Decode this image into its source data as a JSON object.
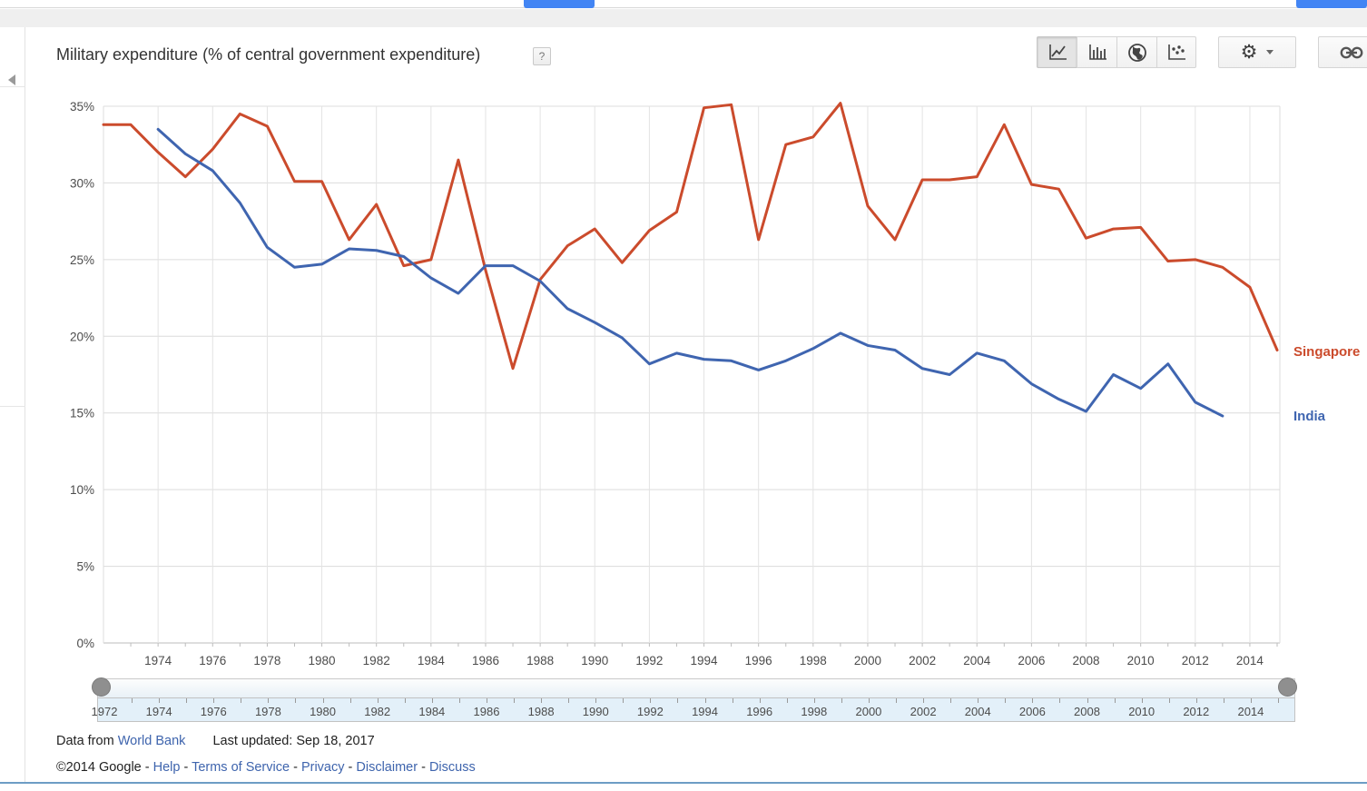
{
  "colors": {
    "accent_blue": "#4285f4",
    "singapore_line": "#cb4b2c",
    "india_line": "#3f65b0",
    "link_blue": "#3e64ad",
    "bottom_rule": "#6d9dc5"
  },
  "header": {
    "title": "Military expenditure (% of central government expenditure)",
    "help_label": "?"
  },
  "toolbar": {
    "chart_type_buttons": [
      {
        "id": "line-chart",
        "selected": true
      },
      {
        "id": "column-chart",
        "selected": false
      },
      {
        "id": "map-chart",
        "selected": false
      },
      {
        "id": "scatter-chart",
        "selected": false
      }
    ],
    "settings_button": "gear-with-dropdown",
    "share_button": "link"
  },
  "chart_data": {
    "type": "line",
    "title": "Military expenditure (% of central government expenditure)",
    "xlabel": "",
    "ylabel": "",
    "ylim": [
      0,
      35
    ],
    "y_ticks": [
      "0%",
      "5%",
      "10%",
      "15%",
      "20%",
      "25%",
      "30%",
      "35%"
    ],
    "x_ticks": [
      1974,
      1976,
      1978,
      1980,
      1982,
      1984,
      1986,
      1988,
      1990,
      1992,
      1994,
      1996,
      1998,
      2000,
      2002,
      2004,
      2006,
      2008,
      2010,
      2012,
      2014
    ],
    "xlim": [
      1972,
      2015
    ],
    "grid": true,
    "legend_position": "right",
    "series": [
      {
        "name": "Singapore",
        "color": "#cb4b2c",
        "x": [
          1972,
          1973,
          1974,
          1975,
          1976,
          1977,
          1978,
          1979,
          1980,
          1981,
          1982,
          1983,
          1984,
          1985,
          1986,
          1987,
          1988,
          1989,
          1990,
          1991,
          1992,
          1993,
          1994,
          1995,
          1996,
          1997,
          1998,
          1999,
          2000,
          2001,
          2002,
          2003,
          2004,
          2005,
          2006,
          2007,
          2008,
          2009,
          2010,
          2011,
          2012,
          2013,
          2014,
          2015
        ],
        "values": [
          33.8,
          33.8,
          32.0,
          30.4,
          32.2,
          34.5,
          33.7,
          30.1,
          30.1,
          26.3,
          28.6,
          24.6,
          25.0,
          31.5,
          24.3,
          17.9,
          23.7,
          25.9,
          27.0,
          24.8,
          26.9,
          28.1,
          34.9,
          35.1,
          26.3,
          32.5,
          33.0,
          35.2,
          28.5,
          26.3,
          30.2,
          30.2,
          30.4,
          33.8,
          29.9,
          29.6,
          26.4,
          27.0,
          27.1,
          24.9,
          25.0,
          24.5,
          23.2,
          19.1
        ]
      },
      {
        "name": "India",
        "color": "#3f65b0",
        "x": [
          1974,
          1975,
          1976,
          1977,
          1978,
          1979,
          1980,
          1981,
          1982,
          1983,
          1984,
          1985,
          1986,
          1987,
          1988,
          1989,
          1990,
          1991,
          1992,
          1993,
          1994,
          1995,
          1996,
          1997,
          1998,
          1999,
          2000,
          2001,
          2002,
          2003,
          2004,
          2005,
          2006,
          2007,
          2008,
          2009,
          2010,
          2011,
          2012,
          2013
        ],
        "values": [
          33.5,
          31.9,
          30.8,
          28.7,
          25.8,
          24.5,
          24.7,
          25.7,
          25.6,
          25.2,
          23.8,
          22.8,
          24.6,
          24.6,
          23.6,
          21.8,
          20.9,
          19.9,
          18.2,
          18.9,
          18.5,
          18.4,
          17.8,
          18.4,
          19.2,
          20.2,
          19.4,
          19.1,
          17.9,
          17.5,
          18.9,
          18.4,
          16.9,
          15.9,
          15.1,
          17.5,
          16.6,
          18.2,
          15.7,
          14.8
        ]
      }
    ]
  },
  "slider": {
    "year_min": 1972,
    "year_max": 2015,
    "tick_labels": [
      1972,
      1974,
      1976,
      1978,
      1980,
      1982,
      1984,
      1986,
      1988,
      1990,
      1992,
      1994,
      1996,
      1998,
      2000,
      2002,
      2004,
      2006,
      2008,
      2010,
      2012,
      2014
    ]
  },
  "footer": {
    "data_from": "Data from",
    "source_link": "World Bank",
    "last_updated": "Last updated: Sep 18, 2017",
    "copyright": "©2014 Google",
    "separator": "-",
    "links": [
      "Help",
      "Terms of Service",
      "Privacy",
      "Disclaimer",
      "Discuss"
    ]
  }
}
